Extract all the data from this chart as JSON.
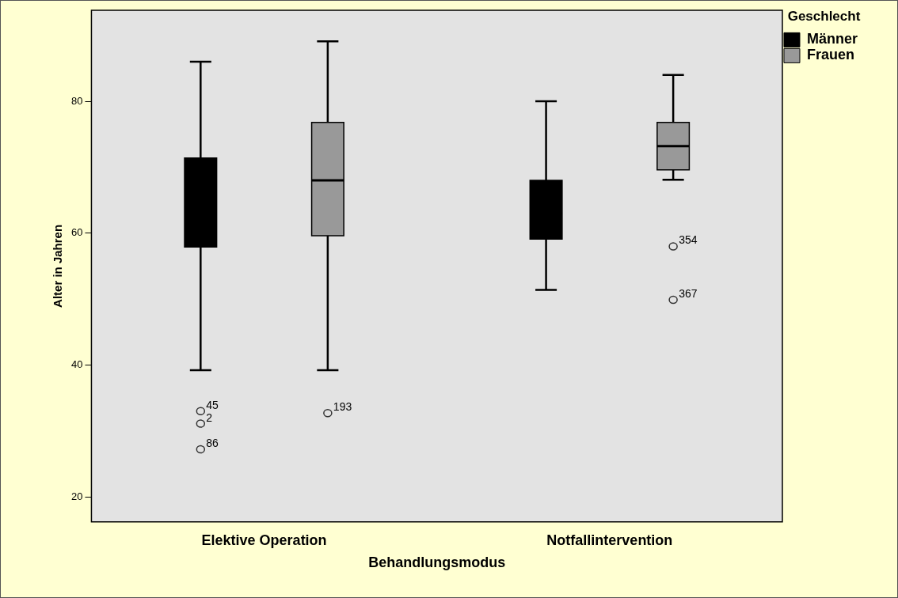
{
  "chart_data": {
    "type": "box",
    "xlabel": "Behandlungsmodus",
    "ylabel": "Alter in Jahren",
    "legend_title": "Geschlecht",
    "legend": "top right",
    "grid": false,
    "categories": [
      "Elektive Operation",
      "Notfallintervention"
    ],
    "ylim": [
      16.2,
      93.8
    ],
    "yticks": [
      20,
      40,
      60,
      80
    ],
    "series": [
      {
        "name": "Männer",
        "color": "#000000",
        "boxes": [
          {
            "low": 39.2,
            "q1": 57.9,
            "median": 64,
            "q3": 71.4,
            "high": 86.0,
            "outliers": [
              33.0,
              31.1,
              27.2
            ]
          },
          {
            "low": 51.4,
            "q1": 59.1,
            "median": 63,
            "q3": 68.0,
            "high": 80.0
          }
        ]
      },
      {
        "name": "Frauen",
        "color": "#999999",
        "boxes": [
          {
            "low": 39.2,
            "q1": 59.6,
            "median": 68.0,
            "q3": 76.8,
            "high": 89.1,
            "outliers": [
              32.7
            ]
          },
          {
            "low": 68.1,
            "q1": 69.6,
            "median": 73.2,
            "q3": 76.8,
            "high": 84.0,
            "outliers": [
              58.0,
              49.9
            ]
          }
        ]
      }
    ],
    "annotations": [
      "45",
      "2",
      "86",
      "193",
      "354",
      "367"
    ]
  }
}
